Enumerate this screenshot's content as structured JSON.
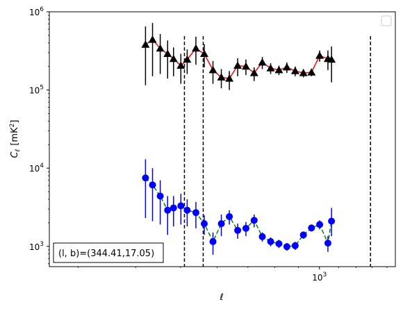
{
  "chart_data": {
    "type": "line",
    "title": "",
    "xlabel": "ℓ",
    "ylabel": "C_ℓ [mK²]",
    "xscale": "log",
    "yscale": "log",
    "xlim": [
      260,
      1460
    ],
    "ylim": [
      550,
      1000000
    ],
    "grid": false,
    "legend": "top-right (empty)",
    "x_tick_labels": [
      {
        "value": 1000,
        "base": "10",
        "exp": "3"
      }
    ],
    "y_tick_labels": [
      {
        "value": 1000,
        "base": "10",
        "exp": "3"
      },
      {
        "value": 10000,
        "base": "10",
        "exp": "4"
      },
      {
        "value": 100000,
        "base": "10",
        "exp": "5"
      },
      {
        "value": 1000000,
        "base": "10",
        "exp": "6"
      }
    ],
    "x_minor_ticks": [
      300,
      400,
      500,
      600,
      700,
      800,
      900,
      1100,
      1200,
      1300,
      1400
    ],
    "vlines": [
      510,
      560,
      1290
    ],
    "annotation": "(l, b)=(344.41,17.05)",
    "series": [
      {
        "marker": "triangle",
        "marker_color": "#000000",
        "line_color": "#ff0000",
        "line_style": "solid",
        "errorbar_color": "#000000",
        "points": [
          {
            "x": 420,
            "y": 380000,
            "lo": 115000,
            "hi": 650000
          },
          {
            "x": 435,
            "y": 440000,
            "lo": 150000,
            "hi": 720000
          },
          {
            "x": 452,
            "y": 340000,
            "lo": 160000,
            "hi": 520000
          },
          {
            "x": 469,
            "y": 290000,
            "lo": 140000,
            "hi": 430000
          },
          {
            "x": 483,
            "y": 250000,
            "lo": 150000,
            "hi": 350000
          },
          {
            "x": 501,
            "y": 205000,
            "lo": 120000,
            "hi": 290000
          },
          {
            "x": 517,
            "y": 245000,
            "lo": 160000,
            "hi": 330000
          },
          {
            "x": 540,
            "y": 340000,
            "lo": 210000,
            "hi": 480000
          },
          {
            "x": 563,
            "y": 290000,
            "lo": 195000,
            "hi": 385000
          },
          {
            "x": 588,
            "y": 180000,
            "lo": 120000,
            "hi": 235000
          },
          {
            "x": 613,
            "y": 145000,
            "lo": 105000,
            "hi": 185000
          },
          {
            "x": 638,
            "y": 140000,
            "lo": 100000,
            "hi": 175000
          },
          {
            "x": 665,
            "y": 205000,
            "lo": 150000,
            "hi": 255000
          },
          {
            "x": 693,
            "y": 200000,
            "lo": 155000,
            "hi": 245000
          },
          {
            "x": 722,
            "y": 165000,
            "lo": 130000,
            "hi": 195000
          },
          {
            "x": 752,
            "y": 225000,
            "lo": 185000,
            "hi": 265000
          },
          {
            "x": 784,
            "y": 190000,
            "lo": 160000,
            "hi": 220000
          },
          {
            "x": 817,
            "y": 180000,
            "lo": 155000,
            "hi": 205000
          },
          {
            "x": 850,
            "y": 195000,
            "lo": 165000,
            "hi": 225000
          },
          {
            "x": 886,
            "y": 175000,
            "lo": 150000,
            "hi": 200000
          },
          {
            "x": 923,
            "y": 165000,
            "lo": 145000,
            "hi": 185000
          },
          {
            "x": 961,
            "y": 168000,
            "lo": 150000,
            "hi": 186000
          },
          {
            "x": 1001,
            "y": 275000,
            "lo": 230000,
            "hi": 320000
          },
          {
            "x": 1043,
            "y": 250000,
            "lo": 180000,
            "hi": 320000
          },
          {
            "x": 1062,
            "y": 245000,
            "lo": 125000,
            "hi": 360000
          }
        ]
      },
      {
        "marker": "circle",
        "marker_color": "#0000ff",
        "line_color": "#008000",
        "line_style": "dashed",
        "errorbar_color": "#0000ff",
        "points": [
          {
            "x": 420,
            "y": 7500,
            "lo": 2300,
            "hi": 13000
          },
          {
            "x": 435,
            "y": 6100,
            "lo": 2100,
            "hi": 10000
          },
          {
            "x": 452,
            "y": 4400,
            "lo": 1900,
            "hi": 7000
          },
          {
            "x": 469,
            "y": 2900,
            "lo": 1400,
            "hi": 4400
          },
          {
            "x": 483,
            "y": 3100,
            "lo": 1800,
            "hi": 4400
          },
          {
            "x": 501,
            "y": 3300,
            "lo": 1900,
            "hi": 4700
          },
          {
            "x": 517,
            "y": 2900,
            "lo": 1800,
            "hi": 4000
          },
          {
            "x": 540,
            "y": 2700,
            "lo": 1700,
            "hi": 3700
          },
          {
            "x": 563,
            "y": 1950,
            "lo": 1400,
            "hi": 2500
          },
          {
            "x": 588,
            "y": 1150,
            "lo": 780,
            "hi": 1500
          },
          {
            "x": 613,
            "y": 1950,
            "lo": 1350,
            "hi": 2550
          },
          {
            "x": 638,
            "y": 2400,
            "lo": 1900,
            "hi": 2900
          },
          {
            "x": 665,
            "y": 1600,
            "lo": 1250,
            "hi": 1950
          },
          {
            "x": 693,
            "y": 1700,
            "lo": 1350,
            "hi": 2050
          },
          {
            "x": 722,
            "y": 2150,
            "lo": 1750,
            "hi": 2550
          },
          {
            "x": 752,
            "y": 1330,
            "lo": 1150,
            "hi": 1510
          },
          {
            "x": 784,
            "y": 1150,
            "lo": 1000,
            "hi": 1300
          },
          {
            "x": 817,
            "y": 1080,
            "lo": 950,
            "hi": 1210
          },
          {
            "x": 850,
            "y": 990,
            "lo": 880,
            "hi": 1100
          },
          {
            "x": 886,
            "y": 1020,
            "lo": 900,
            "hi": 1140
          },
          {
            "x": 923,
            "y": 1400,
            "lo": 1250,
            "hi": 1550
          },
          {
            "x": 961,
            "y": 1720,
            "lo": 1550,
            "hi": 1890
          },
          {
            "x": 1001,
            "y": 1900,
            "lo": 1650,
            "hi": 2150
          },
          {
            "x": 1043,
            "y": 1100,
            "lo": 850,
            "hi": 1350
          },
          {
            "x": 1062,
            "y": 2100,
            "lo": 1350,
            "hi": 3100
          }
        ]
      }
    ]
  }
}
